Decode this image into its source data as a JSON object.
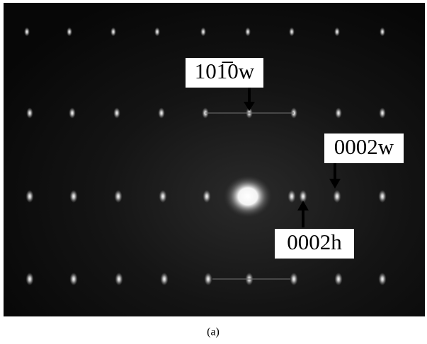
{
  "labels": [
    "101̅0w",
    "0002w",
    "0002h"
  ],
  "caption": "(a)"
}
